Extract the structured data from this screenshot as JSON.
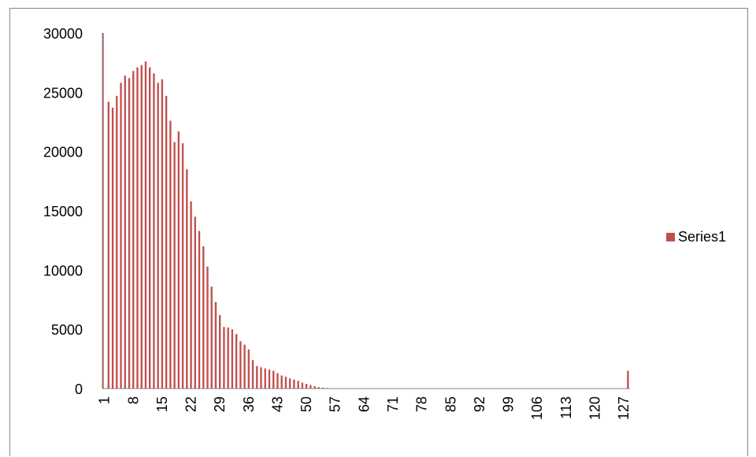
{
  "chart_data": {
    "type": "bar",
    "title": "",
    "xlabel": "",
    "ylabel": "",
    "ylim": [
      0,
      30000
    ],
    "yticks": [
      0,
      5000,
      10000,
      15000,
      20000,
      25000,
      30000
    ],
    "xtick_labels": [
      "1",
      "8",
      "15",
      "22",
      "29",
      "36",
      "43",
      "50",
      "57",
      "64",
      "71",
      "78",
      "85",
      "92",
      "99",
      "106",
      "113",
      "120",
      "127"
    ],
    "categories_range": [
      1,
      128
    ],
    "legend_position": "right",
    "grid": false,
    "series": [
      {
        "name": "Series1",
        "color": "#c0504d",
        "values": [
          30000,
          24200,
          23700,
          24700,
          25800,
          26400,
          26200,
          26800,
          27100,
          27300,
          27600,
          27100,
          26600,
          25800,
          26100,
          24700,
          22600,
          20800,
          21700,
          20700,
          18500,
          15800,
          14500,
          13300,
          12000,
          10300,
          8600,
          7300,
          6200,
          5200,
          5150,
          5000,
          4600,
          4000,
          3700,
          3300,
          2400,
          1900,
          1800,
          1700,
          1600,
          1500,
          1300,
          1100,
          1000,
          850,
          750,
          650,
          500,
          400,
          300,
          200,
          120,
          80,
          50,
          30,
          20,
          10,
          8,
          6,
          5,
          4,
          3,
          3,
          2,
          2,
          2,
          1,
          1,
          1,
          1,
          1,
          1,
          1,
          1,
          1,
          1,
          1,
          1,
          1,
          1,
          1,
          1,
          1,
          1,
          1,
          1,
          1,
          1,
          1,
          1,
          1,
          1,
          1,
          1,
          1,
          1,
          1,
          1,
          1,
          1,
          1,
          1,
          1,
          1,
          1,
          1,
          1,
          1,
          1,
          1,
          1,
          1,
          1,
          1,
          1,
          1,
          1,
          1,
          1,
          1,
          1,
          1,
          1,
          1,
          1,
          1,
          1500
        ]
      }
    ]
  }
}
